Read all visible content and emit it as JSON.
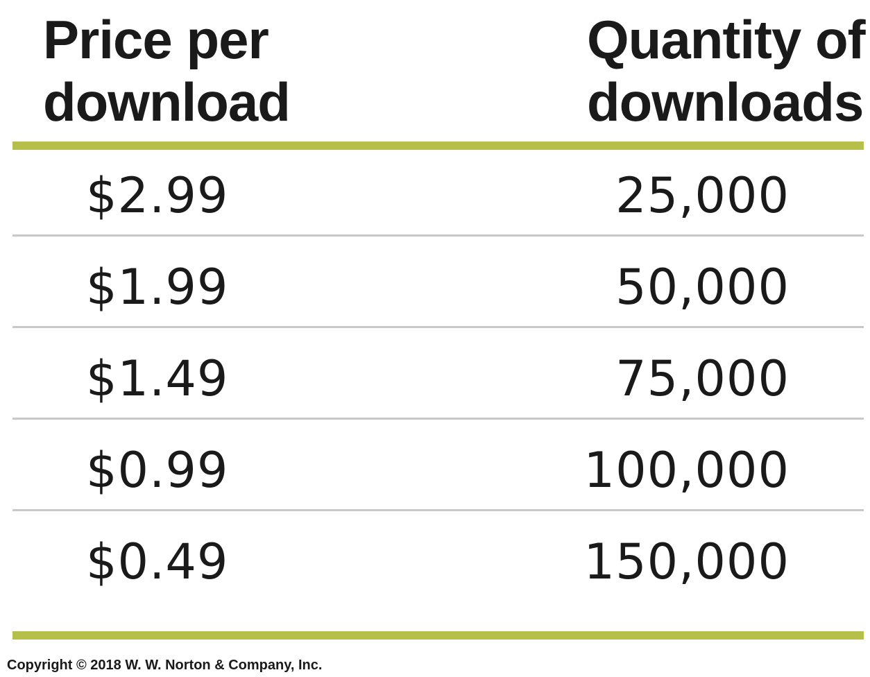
{
  "chart_data": {
    "type": "table",
    "columns": [
      "Price per download",
      "Quantity of downloads"
    ],
    "header": {
      "price_lines": [
        "Price per",
        "download"
      ],
      "quantity_lines": [
        "Quantity of",
        "downloads"
      ]
    },
    "rows": [
      {
        "price": "$2.99",
        "quantity": "25,000"
      },
      {
        "price": "$1.99",
        "quantity": "50,000"
      },
      {
        "price": "$1.49",
        "quantity": "75,000"
      },
      {
        "price": "$0.99",
        "quantity": "100,000"
      },
      {
        "price": "$0.49",
        "quantity": "150,000"
      }
    ],
    "values": {
      "price": [
        2.99,
        1.99,
        1.49,
        0.99,
        0.49
      ],
      "quantity": [
        25000,
        50000,
        75000,
        100000,
        150000
      ]
    }
  },
  "footer": {
    "copyright": "Copyright © 2018 W. W. Norton & Company, Inc."
  },
  "colors": {
    "accent_rule": "#b5bf4a",
    "row_rule": "#c8c8c8",
    "text": "#1a1a1a"
  }
}
